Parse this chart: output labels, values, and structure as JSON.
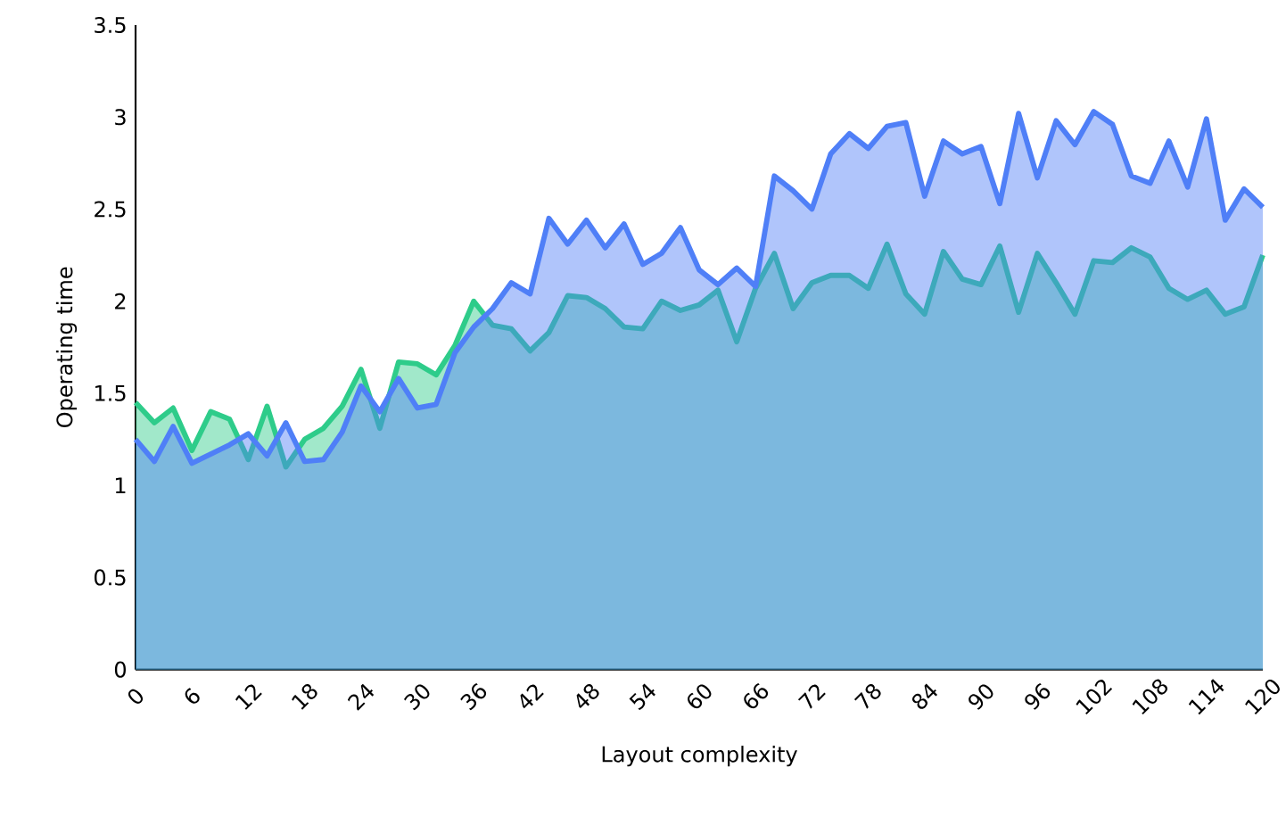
{
  "chart_data": {
    "type": "area",
    "xlabel": "Layout complexity",
    "ylabel": "Operating time",
    "x": [
      0,
      2,
      4,
      6,
      8,
      10,
      12,
      14,
      16,
      18,
      20,
      22,
      24,
      26,
      28,
      30,
      32,
      34,
      36,
      38,
      40,
      42,
      44,
      46,
      48,
      50,
      52,
      54,
      56,
      58,
      60,
      62,
      64,
      66,
      68,
      70,
      72,
      74,
      76,
      78,
      80,
      82,
      84,
      86,
      88,
      90,
      92,
      94,
      96,
      98,
      100,
      102,
      104,
      106,
      108,
      110,
      112,
      114,
      116,
      118,
      120
    ],
    "series": [
      {
        "color": "#2ecc8a",
        "values": [
          1.45,
          1.34,
          1.42,
          1.19,
          1.4,
          1.36,
          1.14,
          1.43,
          1.1,
          1.25,
          1.31,
          1.43,
          1.63,
          1.31,
          1.67,
          1.66,
          1.6,
          1.76,
          2.0,
          1.87,
          1.85,
          1.73,
          1.83,
          2.03,
          2.02,
          1.96,
          1.86,
          1.85,
          2.0,
          1.95,
          1.98,
          2.06,
          1.78,
          2.07,
          2.26,
          1.96,
          2.1,
          2.14,
          2.14,
          2.07,
          2.31,
          2.04,
          1.93,
          2.27,
          2.12,
          2.09,
          2.3,
          1.94,
          2.26,
          2.1,
          1.93,
          2.22,
          2.21,
          2.29,
          2.24,
          2.07,
          2.01,
          2.06,
          1.93,
          1.97,
          2.25
        ]
      },
      {
        "color": "#4f7ff7",
        "values": [
          1.25,
          1.13,
          1.32,
          1.12,
          1.17,
          1.22,
          1.28,
          1.16,
          1.34,
          1.13,
          1.14,
          1.29,
          1.54,
          1.4,
          1.58,
          1.42,
          1.44,
          1.72,
          1.86,
          1.96,
          2.1,
          2.04,
          2.45,
          2.31,
          2.44,
          2.29,
          2.42,
          2.2,
          2.26,
          2.4,
          2.17,
          2.09,
          2.18,
          2.08,
          2.68,
          2.6,
          2.5,
          2.8,
          2.91,
          2.83,
          2.95,
          2.97,
          2.57,
          2.87,
          2.8,
          2.84,
          2.53,
          3.02,
          2.67,
          2.98,
          2.85,
          3.03,
          2.96,
          2.68,
          2.64,
          2.87,
          2.62,
          2.99,
          2.44,
          2.61,
          2.51
        ]
      }
    ],
    "xlim": [
      0,
      120
    ],
    "xticks": [
      0,
      6,
      12,
      18,
      24,
      30,
      36,
      42,
      48,
      54,
      60,
      66,
      72,
      78,
      84,
      90,
      96,
      102,
      108,
      114,
      120
    ],
    "ylim": [
      0,
      3.5
    ],
    "yticks": [
      0,
      0.5,
      1,
      1.5,
      2,
      2.5,
      3,
      3.5
    ],
    "grid": false
  }
}
